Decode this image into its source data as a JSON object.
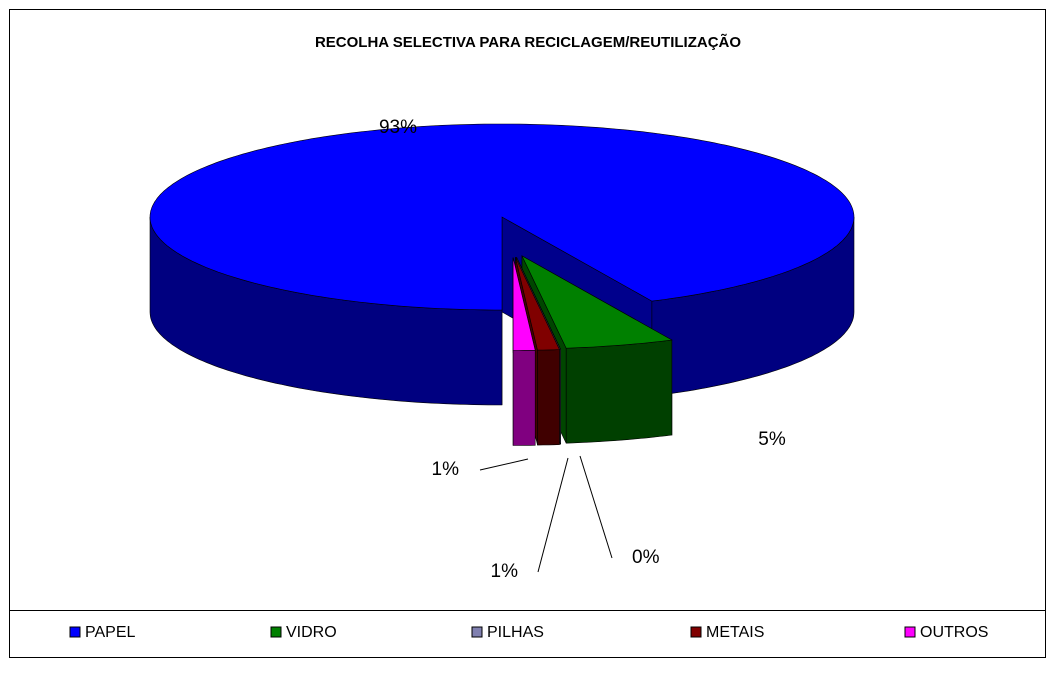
{
  "chart_data": {
    "type": "pie3d",
    "title": "RECOLHA SELECTIVA PARA RECICLAGEM/REUTILIZAÇÃO",
    "categories": [
      "PAPEL",
      "VIDRO",
      "PILHAS",
      "METAIS",
      "OUTROS"
    ],
    "values": [
      93,
      5,
      0,
      1,
      1
    ],
    "value_labels": [
      "93%",
      "5%",
      "0%",
      "1%",
      "1%"
    ],
    "colors": [
      "#0000ff",
      "#008000",
      "#8080b0",
      "#800000",
      "#ff00ff"
    ],
    "legend": "bottom"
  }
}
